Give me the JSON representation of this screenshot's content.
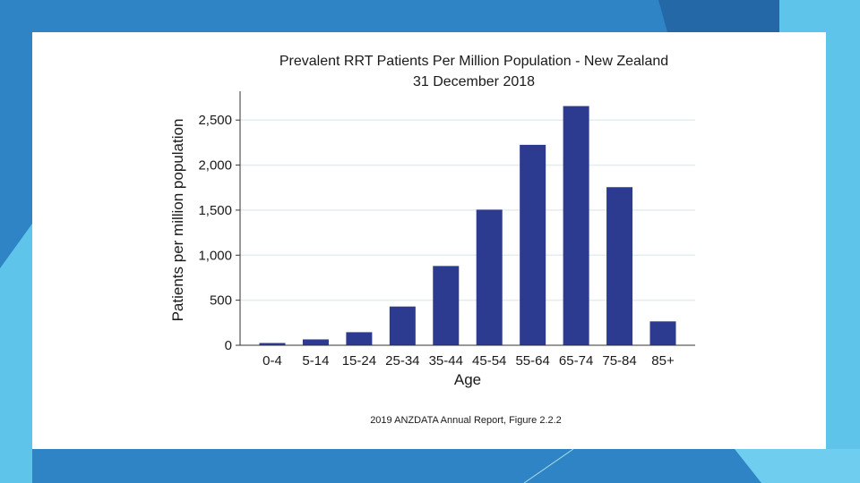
{
  "colors": {
    "background": "#2e84c4",
    "accent_dark": "#2568a8",
    "accent_light": "#5ec4ea",
    "bar": "#2c3a8f",
    "grid": "#e3ecef"
  },
  "footer": {
    "caption": "2019 ANZDATA Annual Report, Figure 2.2.2"
  },
  "chart_data": {
    "type": "bar",
    "title": "Prevalent RRT Patients Per Million Population - New Zealand",
    "subtitle": "31 December 2018",
    "xlabel": "Age",
    "ylabel": "Patients per million population",
    "categories": [
      "0-4",
      "5-14",
      "15-24",
      "25-34",
      "35-44",
      "45-54",
      "55-64",
      "65-74",
      "75-84",
      "85+"
    ],
    "values": [
      25,
      65,
      145,
      430,
      880,
      1505,
      2225,
      2655,
      1755,
      265
    ],
    "ylim": [
      0,
      2800
    ],
    "yticks": [
      0,
      500,
      1000,
      1500,
      2000,
      2500
    ],
    "ytick_labels": [
      "0",
      "500",
      "1,000",
      "1,500",
      "2,000",
      "2,500"
    ],
    "grid": true,
    "legend": "none"
  }
}
